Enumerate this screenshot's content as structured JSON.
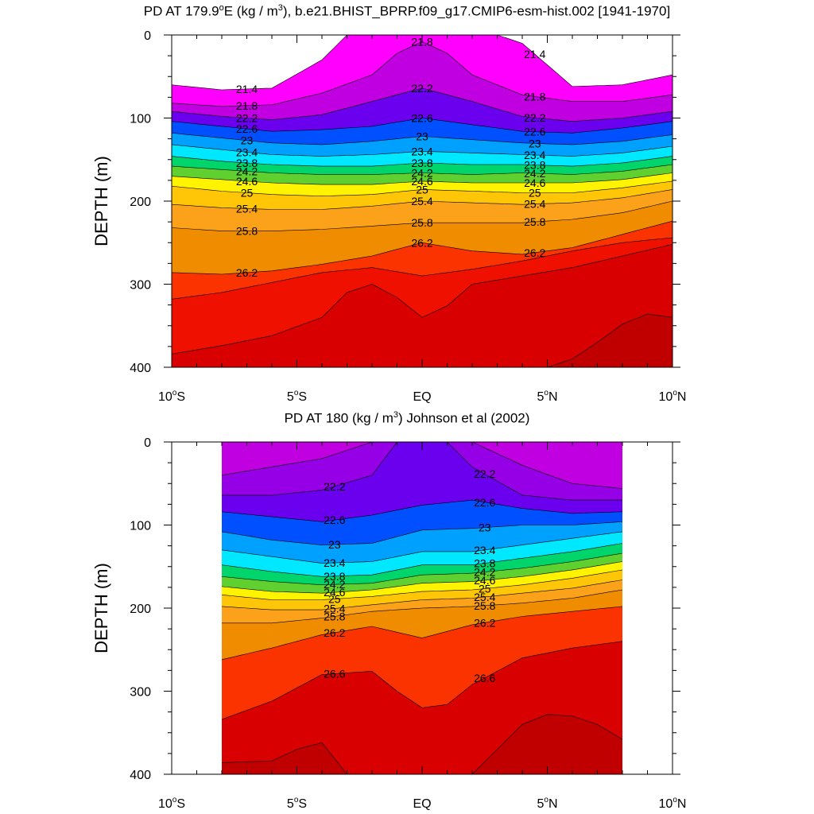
{
  "chart_data": [
    {
      "type": "contour",
      "title": "PD AT 179.9",
      "title_deg": "o",
      "title_mid": "E (kg / m",
      "title_sup": "3",
      "title_end": "), b.e21.BHIST_BPRP.f09_g17.CMIP6-esm-hist.002 [1941-1970]",
      "ylabel": "DEPTH (m)",
      "xlabel": "",
      "xlim": [
        -10,
        10
      ],
      "ylim": [
        400,
        0
      ],
      "xticks": [
        {
          "value": -10,
          "label": "10",
          "deg": "o",
          "suffix": "S"
        },
        {
          "value": -5,
          "label": "5",
          "deg": "o",
          "suffix": "S"
        },
        {
          "value": 0,
          "label": "EQ",
          "deg": "",
          "suffix": ""
        },
        {
          "value": 5,
          "label": "5",
          "deg": "o",
          "suffix": "N"
        },
        {
          "value": 10,
          "label": "10",
          "deg": "o",
          "suffix": "N"
        }
      ],
      "yticks": [
        "0",
        "100",
        "200",
        "300",
        "400"
      ],
      "ytick_values": [
        0,
        100,
        200,
        300,
        400
      ],
      "lat_range": [
        -10,
        10
      ],
      "levels": [
        21.0,
        21.2,
        21.4,
        21.6,
        21.8,
        22.0,
        22.2,
        22.4,
        22.6,
        22.8,
        23.0,
        23.2,
        23.4,
        23.6,
        23.8,
        24.0,
        24.2,
        24.4,
        24.6,
        24.8,
        25.0,
        25.2,
        25.4,
        25.6,
        25.8,
        26.0,
        26.2,
        26.4,
        26.6,
        26.8
      ],
      "isopycnal_depths": [
        {
          "density": 21.4,
          "lat": [
            -10,
            -8,
            -6,
            -4,
            -3,
            -2,
            -1,
            0,
            1,
            2,
            3,
            4,
            6,
            8,
            10
          ],
          "depth": [
            60,
            66,
            64,
            30,
            0,
            0,
            0,
            0,
            0,
            0,
            0,
            10,
            62,
            60,
            48
          ]
        },
        {
          "density": 21.8,
          "lat": [
            -10,
            -8,
            -6,
            -4,
            -2,
            -1,
            0,
            1,
            2,
            4,
            6,
            8,
            10
          ],
          "depth": [
            82,
            86,
            84,
            70,
            48,
            22,
            8,
            22,
            48,
            72,
            80,
            80,
            72
          ]
        },
        {
          "density": 22.2,
          "lat": [
            -10,
            -8,
            -6,
            -4,
            -2,
            0,
            2,
            4,
            6,
            8,
            10
          ],
          "depth": [
            92,
            98,
            102,
            96,
            80,
            64,
            80,
            98,
            104,
            100,
            92
          ]
        },
        {
          "density": 22.6,
          "lat": [
            -10,
            -8,
            -6,
            -4,
            -2,
            0,
            2,
            4,
            6,
            8,
            10
          ],
          "depth": [
            104,
            110,
            116,
            114,
            110,
            100,
            108,
            116,
            118,
            112,
            104
          ]
        },
        {
          "density": 23.0,
          "lat": [
            -10,
            -8,
            -6,
            -4,
            -2,
            0,
            2,
            4,
            6,
            8,
            10
          ],
          "depth": [
            118,
            124,
            130,
            132,
            128,
            122,
            126,
            130,
            132,
            128,
            120
          ]
        },
        {
          "density": 23.4,
          "lat": [
            -10,
            -8,
            -6,
            -4,
            -2,
            0,
            2,
            4,
            6,
            8,
            10
          ],
          "depth": [
            132,
            138,
            144,
            146,
            144,
            140,
            142,
            144,
            146,
            142,
            134
          ]
        },
        {
          "density": 23.8,
          "lat": [
            -10,
            -8,
            -6,
            -4,
            -2,
            0,
            2,
            4,
            6,
            8,
            10
          ],
          "depth": [
            146,
            152,
            156,
            158,
            158,
            154,
            156,
            156,
            158,
            154,
            146
          ]
        },
        {
          "density": 24.2,
          "lat": [
            -10,
            -8,
            -6,
            -4,
            -2,
            0,
            2,
            4,
            6,
            8,
            10
          ],
          "depth": [
            158,
            162,
            166,
            168,
            168,
            166,
            168,
            166,
            168,
            164,
            156
          ]
        },
        {
          "density": 24.6,
          "lat": [
            -10,
            -8,
            -6,
            -4,
            -2,
            0,
            2,
            4,
            6,
            8,
            10
          ],
          "depth": [
            170,
            174,
            178,
            180,
            180,
            176,
            178,
            178,
            178,
            174,
            166
          ]
        },
        {
          "density": 25.0,
          "lat": [
            -10,
            -8,
            -6,
            -4,
            -2,
            0,
            2,
            4,
            6,
            8,
            10
          ],
          "depth": [
            182,
            188,
            192,
            194,
            192,
            186,
            188,
            190,
            190,
            184,
            176
          ]
        },
        {
          "density": 25.4,
          "lat": [
            -10,
            -8,
            -6,
            -4,
            -2,
            0,
            2,
            4,
            6,
            8,
            10
          ],
          "depth": [
            204,
            208,
            210,
            210,
            206,
            200,
            202,
            204,
            202,
            196,
            186
          ]
        },
        {
          "density": 25.8,
          "lat": [
            -10,
            -8,
            -6,
            -4,
            -2,
            0,
            2,
            4,
            6,
            8,
            10
          ],
          "depth": [
            232,
            236,
            236,
            234,
            230,
            226,
            226,
            226,
            222,
            214,
            200
          ]
        },
        {
          "density": 26.2,
          "lat": [
            -10,
            -8,
            -6,
            -4,
            -2,
            0,
            2,
            4,
            6,
            8,
            10
          ],
          "depth": [
            286,
            288,
            284,
            276,
            266,
            250,
            260,
            264,
            256,
            240,
            224
          ]
        },
        {
          "density": 26.4,
          "lat": [
            -10,
            -8,
            -6,
            -4,
            -2,
            0,
            2,
            4,
            6,
            8,
            10
          ],
          "depth": [
            318,
            310,
            298,
            286,
            280,
            290,
            282,
            272,
            260,
            250,
            244
          ]
        },
        {
          "density": 26.6,
          "lat": [
            -10,
            -8,
            -6,
            -4,
            -3,
            -2,
            -1,
            0,
            1,
            2,
            4,
            6,
            8,
            10
          ],
          "depth": [
            384,
            374,
            362,
            340,
            310,
            300,
            316,
            340,
            326,
            300,
            290,
            280,
            266,
            252
          ]
        },
        {
          "density": 26.8,
          "lat": [
            -10,
            5,
            6,
            7,
            8,
            9,
            10
          ],
          "depth": [
            400,
            400,
            390,
            370,
            348,
            336,
            340
          ]
        }
      ],
      "contour_labels": [
        "21.4",
        "21.8",
        "22.2",
        "22.6",
        "23",
        "23.4",
        "23.8",
        "24.2",
        "24.6",
        "25",
        "25.4",
        "25.8",
        "26.2"
      ],
      "grid": false
    },
    {
      "type": "contour",
      "title": "PD AT 180 (kg / m",
      "title_sup": "3",
      "title_end": ") Johnson et al (2002)",
      "ylabel": "DEPTH (m)",
      "xlabel": "",
      "xlim": [
        -10,
        10
      ],
      "ylim": [
        400,
        0
      ],
      "xticks": [
        {
          "value": -10,
          "label": "10",
          "deg": "o",
          "suffix": "S"
        },
        {
          "value": -5,
          "label": "5",
          "deg": "o",
          "suffix": "S"
        },
        {
          "value": 0,
          "label": "EQ",
          "deg": "",
          "suffix": ""
        },
        {
          "value": 5,
          "label": "5",
          "deg": "o",
          "suffix": "N"
        },
        {
          "value": 10,
          "label": "10",
          "deg": "o",
          "suffix": "N"
        }
      ],
      "yticks": [
        "0",
        "100",
        "200",
        "300",
        "400"
      ],
      "ytick_values": [
        0,
        100,
        200,
        300,
        400
      ],
      "lat_range": [
        -8,
        8
      ],
      "levels": [
        21.8,
        22.0,
        22.2,
        22.4,
        22.6,
        22.8,
        23.0,
        23.2,
        23.4,
        23.6,
        23.8,
        24.0,
        24.2,
        24.4,
        24.6,
        24.8,
        25.0,
        25.2,
        25.4,
        25.6,
        25.8,
        26.0,
        26.2,
        26.4,
        26.6,
        26.8
      ],
      "isopycnal_depths": [
        {
          "density": 22.0,
          "lat": [
            -8,
            -6,
            -4,
            -2,
            -1,
            0,
            1,
            2,
            4,
            6,
            8
          ],
          "depth": [
            40,
            30,
            20,
            0,
            0,
            0,
            0,
            0,
            28,
            50,
            56
          ]
        },
        {
          "density": 22.2,
          "lat": [
            -8,
            -6,
            -4,
            -2,
            -1,
            0,
            1,
            2,
            4,
            6,
            8
          ],
          "depth": [
            64,
            64,
            58,
            40,
            0,
            0,
            0,
            30,
            64,
            70,
            70
          ]
        },
        {
          "density": 22.6,
          "lat": [
            -8,
            -6,
            -4,
            -2,
            0,
            2,
            4,
            6,
            8
          ],
          "depth": [
            84,
            90,
            96,
            88,
            76,
            70,
            80,
            86,
            84
          ]
        },
        {
          "density": 23.0,
          "lat": [
            -8,
            -6,
            -4,
            -2,
            0,
            2,
            4,
            6,
            8
          ],
          "depth": [
            108,
            118,
            124,
            122,
            106,
            104,
            100,
            100,
            96
          ]
        },
        {
          "density": 23.4,
          "lat": [
            -8,
            -6,
            -4,
            -2,
            0,
            2,
            4,
            6,
            8
          ],
          "depth": [
            130,
            138,
            146,
            144,
            132,
            132,
            124,
            116,
            108
          ]
        },
        {
          "density": 23.8,
          "lat": [
            -8,
            -6,
            -4,
            -2,
            0,
            2,
            4,
            6,
            8
          ],
          "depth": [
            148,
            156,
            162,
            160,
            148,
            148,
            140,
            132,
            122
          ]
        },
        {
          "density": 24.2,
          "lat": [
            -8,
            -6,
            -4,
            -2,
            0,
            2,
            4,
            6,
            8
          ],
          "depth": [
            162,
            168,
            172,
            170,
            160,
            158,
            152,
            144,
            134
          ]
        },
        {
          "density": 24.6,
          "lat": [
            -8,
            -6,
            -4,
            -2,
            0,
            2,
            4,
            6,
            8
          ],
          "depth": [
            174,
            180,
            182,
            178,
            170,
            168,
            162,
            154,
            144
          ]
        },
        {
          "density": 25.0,
          "lat": [
            -8,
            -6,
            -4,
            -2,
            0,
            2,
            4,
            6,
            8
          ],
          "depth": [
            184,
            190,
            190,
            186,
            180,
            178,
            172,
            164,
            154
          ]
        },
        {
          "density": 25.4,
          "lat": [
            -8,
            -6,
            -4,
            -2,
            0,
            2,
            4,
            6,
            8
          ],
          "depth": [
            198,
            202,
            202,
            196,
            190,
            188,
            182,
            176,
            166
          ]
        },
        {
          "density": 25.8,
          "lat": [
            -8,
            -6,
            -4,
            -2,
            0,
            2,
            4,
            6,
            8
          ],
          "depth": [
            218,
            218,
            212,
            204,
            200,
            198,
            194,
            188,
            178
          ]
        },
        {
          "density": 26.2,
          "lat": [
            -8,
            -6,
            -4,
            -2,
            0,
            2,
            4,
            6,
            8
          ],
          "depth": [
            262,
            248,
            232,
            222,
            236,
            220,
            210,
            204,
            198
          ]
        },
        {
          "density": 26.6,
          "lat": [
            -8,
            -6,
            -4,
            -2,
            -1,
            0,
            1,
            2,
            4,
            6,
            8
          ],
          "depth": [
            334,
            312,
            280,
            276,
            300,
            320,
            316,
            292,
            260,
            248,
            240
          ]
        },
        {
          "density": 26.8,
          "lat": [
            -8,
            -6,
            -5,
            -4,
            -3,
            -2,
            2,
            3,
            4,
            5,
            6,
            7,
            8
          ],
          "depth": [
            386,
            384,
            370,
            362,
            400,
            400,
            400,
            370,
            340,
            328,
            330,
            340,
            358
          ]
        }
      ],
      "contour_labels": [
        "22.2",
        "22.6",
        "23",
        "23.4",
        "23.8",
        "24.2",
        "24.6",
        "25",
        "25.4",
        "25.8",
        "26.2",
        "26.6"
      ],
      "grid": false
    }
  ]
}
